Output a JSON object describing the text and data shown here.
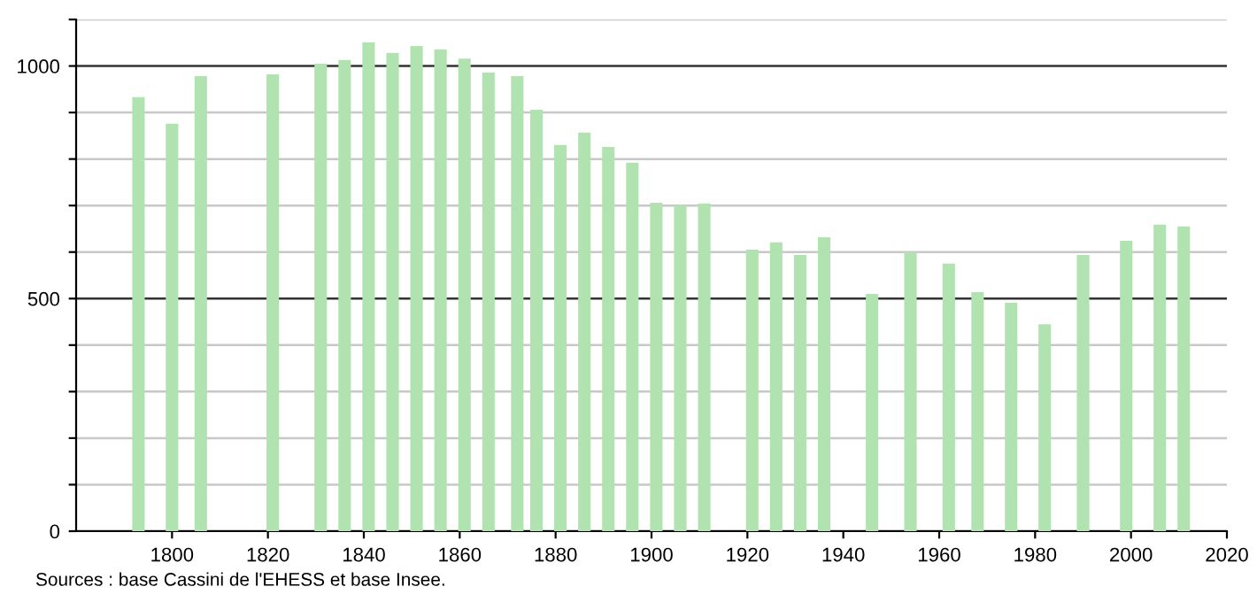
{
  "chart_data": {
    "type": "bar",
    "x": [
      1793,
      1800,
      1806,
      1821,
      1831,
      1836,
      1841,
      1846,
      1851,
      1856,
      1861,
      1866,
      1872,
      1876,
      1881,
      1886,
      1891,
      1896,
      1901,
      1906,
      1911,
      1921,
      1926,
      1931,
      1936,
      1946,
      1954,
      1962,
      1968,
      1975,
      1982,
      1990,
      1999,
      2006,
      2011
    ],
    "values": [
      933,
      876,
      978,
      982,
      1005,
      1013,
      1051,
      1028,
      1043,
      1036,
      1016,
      986,
      978,
      906,
      830,
      857,
      826,
      792,
      706,
      701,
      704,
      605,
      621,
      594,
      632,
      510,
      600,
      575,
      514,
      491,
      445,
      594,
      624,
      659,
      655
    ],
    "color": "#b0e3b0",
    "xlim": [
      1780,
      2020
    ],
    "xticks": [
      1800,
      1820,
      1840,
      1860,
      1880,
      1900,
      1920,
      1940,
      1960,
      1980,
      2000,
      2020
    ],
    "ylim": [
      0,
      1100
    ],
    "yticks": [
      0,
      {
        "value": 100,
        "label": null
      },
      {
        "value": 200,
        "label": null
      },
      {
        "value": 300,
        "label": null
      },
      {
        "value": 400,
        "label": null
      },
      500,
      {
        "value": 600,
        "label": null
      },
      {
        "value": 700,
        "label": null
      },
      {
        "value": 800,
        "label": null
      },
      {
        "value": 900,
        "label": null
      },
      1000,
      {
        "value": 1100,
        "label": null
      }
    ],
    "grid": "y",
    "annotations": [
      "Sources : base Cassini de l'EHESS et base Insee."
    ]
  }
}
